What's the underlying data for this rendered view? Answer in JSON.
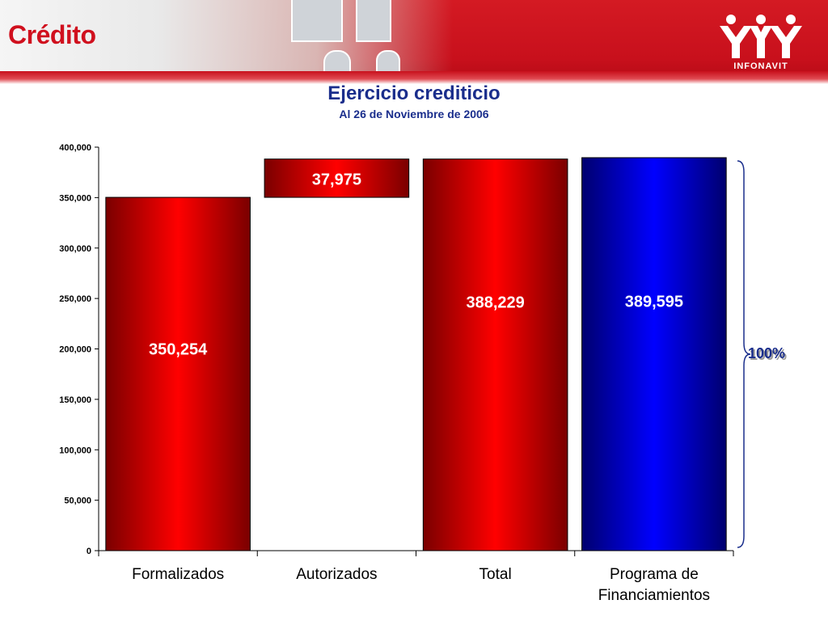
{
  "header": {
    "title": "Crédito",
    "logo_text": "INFONAVIT"
  },
  "colors": {
    "brand_red": "#d0101e",
    "title_blue": "#1a2e8c",
    "bar_red": "#ff0000",
    "bar_blue": "#0000ff"
  },
  "chart_data": {
    "type": "bar",
    "title": "Ejercicio crediticio",
    "subtitle": "Al 26 de Noviembre de 2006",
    "categories": [
      "Formalizados",
      "Autorizados",
      "Total",
      "Programa de Financiamientos"
    ],
    "bars": [
      {
        "category": "Formalizados",
        "base": 0,
        "value": 350254,
        "label": "350,254",
        "color": "red"
      },
      {
        "category": "Autorizados",
        "base": 350254,
        "value": 37975,
        "label": "37,975",
        "color": "red"
      },
      {
        "category": "Total",
        "base": 0,
        "value": 388229,
        "label": "388,229",
        "color": "red"
      },
      {
        "category": "Programa de Financiamientos",
        "base": 0,
        "value": 389595,
        "label": "389,595",
        "color": "blue"
      }
    ],
    "ylim": [
      0,
      400000
    ],
    "yticks": [
      0,
      50000,
      100000,
      150000,
      200000,
      250000,
      300000,
      350000,
      400000
    ],
    "ytick_labels": [
      "0",
      "50,000",
      "100,000",
      "150,000",
      "200,000",
      "250,000",
      "300,000",
      "350,000",
      "400,000"
    ],
    "bracket_label": "100%",
    "grid": false,
    "legend": "none"
  }
}
